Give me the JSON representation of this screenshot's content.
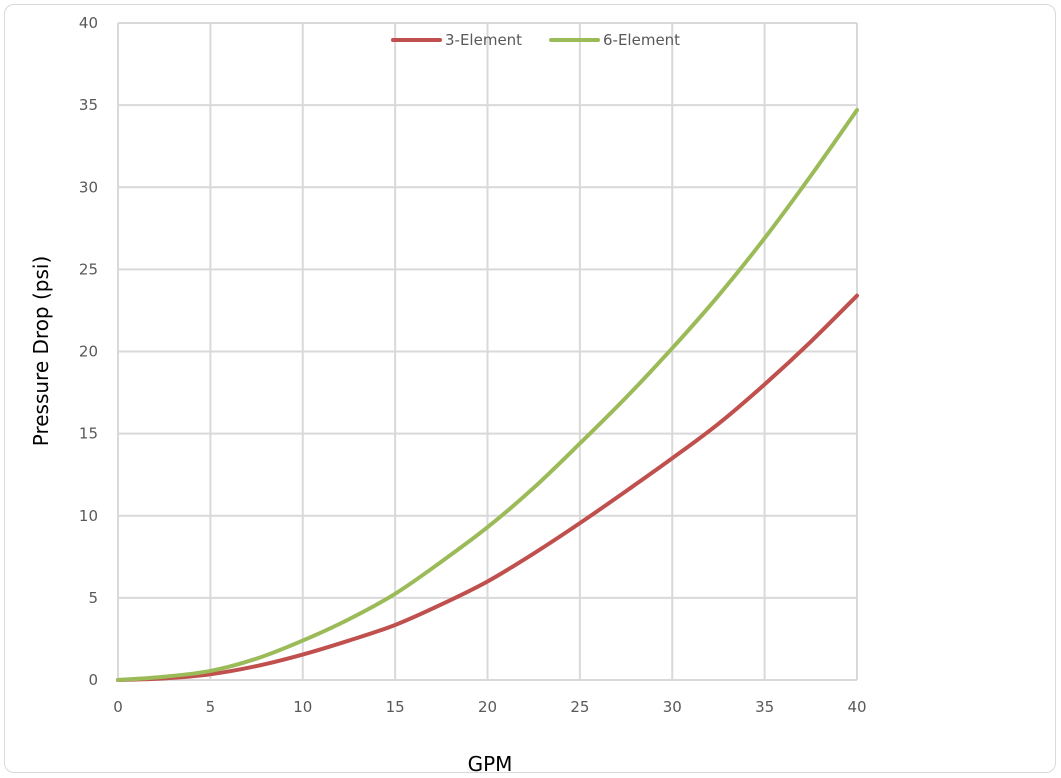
{
  "chart_data": {
    "type": "line",
    "xlabel": "GPM",
    "ylabel": "Pressure Drop (psi)",
    "xlim": [
      0,
      40
    ],
    "ylim": [
      0,
      40
    ],
    "x_ticks": [
      "0",
      "5",
      "10",
      "15",
      "20",
      "25",
      "30",
      "35",
      "40"
    ],
    "y_ticks": [
      "0",
      "5",
      "10",
      "15",
      "20",
      "25",
      "30",
      "35",
      "40"
    ],
    "grid": true,
    "legend_position": "top-center",
    "x": [
      0,
      2.5,
      5,
      7.5,
      10,
      12.5,
      15,
      17.5,
      20,
      22.5,
      25,
      27.5,
      30,
      32.5,
      35,
      37.5,
      40
    ],
    "series": [
      {
        "name": "3-Element",
        "color": "#c0504d",
        "values": [
          0,
          0.1,
          0.35,
          0.85,
          1.55,
          2.4,
          3.35,
          4.6,
          6.0,
          7.7,
          9.55,
          11.5,
          13.5,
          15.6,
          18.0,
          20.6,
          23.4
        ]
      },
      {
        "name": "6-Element",
        "color": "#9bbb59",
        "values": [
          0,
          0.2,
          0.55,
          1.3,
          2.4,
          3.7,
          5.25,
          7.2,
          9.3,
          11.7,
          14.4,
          17.2,
          20.2,
          23.4,
          26.9,
          30.7,
          34.7
        ]
      }
    ]
  }
}
